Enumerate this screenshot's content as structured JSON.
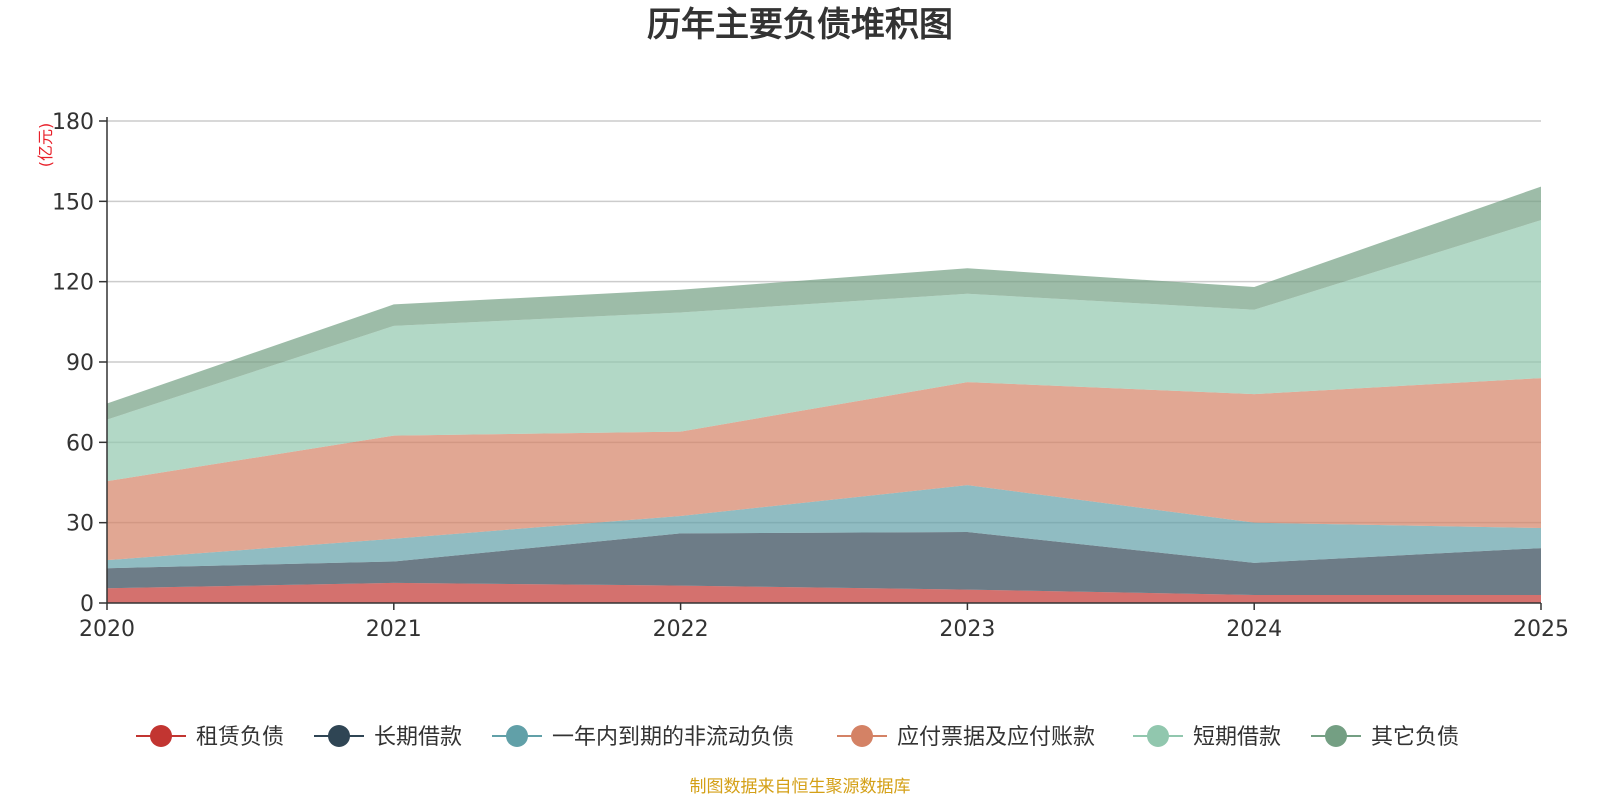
{
  "chart_data": {
    "type": "area",
    "stacked": true,
    "title": "历年主要负债堆积图",
    "unit": "(亿元)",
    "categories": [
      "2020",
      "2021",
      "2022",
      "2023",
      "2024",
      "2025"
    ],
    "ylim": [
      0,
      180
    ],
    "yticks": [
      0,
      30,
      60,
      90,
      120,
      150,
      180
    ],
    "grid": true,
    "legend_position": "bottom",
    "series": [
      {
        "name": "租赁负债",
        "color": "#c23531",
        "values": [
          5.5,
          7.5,
          6.5,
          5,
          3,
          3
        ]
      },
      {
        "name": "长期借款",
        "color": "#2f4554",
        "values": [
          7.5,
          8,
          19.5,
          21.5,
          12,
          17.5
        ]
      },
      {
        "name": "一年内到期的非流动负债",
        "color": "#61a0a8",
        "values": [
          3,
          8.5,
          6.5,
          17.5,
          15,
          7.5
        ]
      },
      {
        "name": "应付票据及应付账款",
        "color": "#d48265",
        "values": [
          29.5,
          38.5,
          31.5,
          38.5,
          48,
          56
        ]
      },
      {
        "name": "短期借款",
        "color": "#91c7ae",
        "values": [
          23,
          41,
          44.5,
          33,
          31.5,
          59
        ]
      },
      {
        "name": "其它负债",
        "color": "#749f83",
        "values": [
          6,
          8,
          8.5,
          9.5,
          8.5,
          12.5
        ]
      }
    ],
    "source_note": "制图数据来自恒生聚源数据库"
  }
}
